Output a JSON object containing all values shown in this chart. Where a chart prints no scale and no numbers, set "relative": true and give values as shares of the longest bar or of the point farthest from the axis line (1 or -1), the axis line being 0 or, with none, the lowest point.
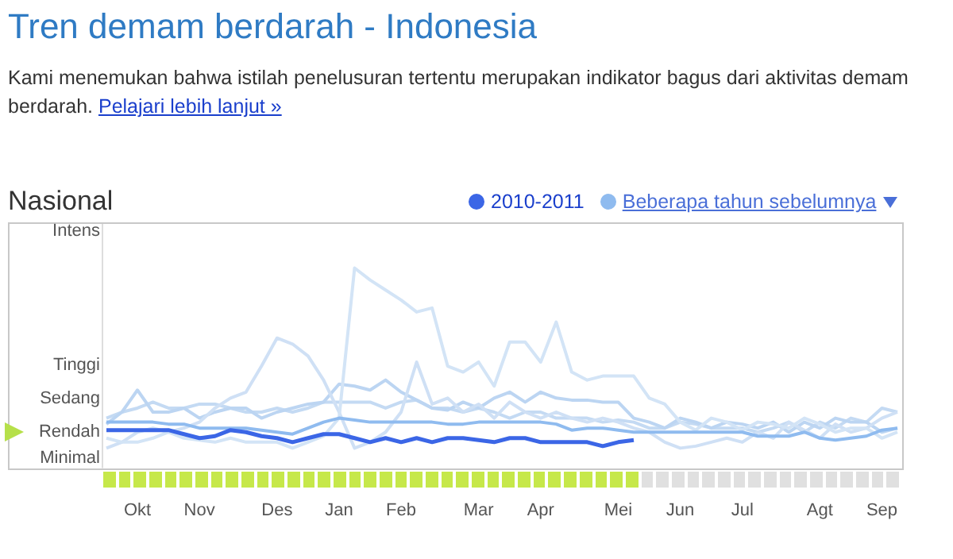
{
  "chart_data": {
    "type": "line",
    "title": "Tren demam berdarah - Indonesia",
    "subtitle": "Nasional",
    "annotations": [
      "Kami menemukan bahwa istilah penelusuran tertentu merupakan indikator bagus dari aktivitas demam berdarah.",
      "Pelajari lebih lanjut »",
      "Minimal",
      "Rendah",
      "Sedang",
      "Tinggi",
      "Intens"
    ],
    "categories": [
      null,
      null,
      "Okt",
      null,
      null,
      null,
      "Nov",
      null,
      null,
      null,
      null,
      "Des",
      null,
      null,
      null,
      "Jan",
      null,
      null,
      null,
      "Feb",
      null,
      null,
      null,
      null,
      "Mar",
      null,
      null,
      null,
      "Apr",
      null,
      null,
      null,
      null,
      "Mei",
      null,
      null,
      null,
      "Jun",
      null,
      null,
      null,
      "Jul",
      null,
      null,
      null,
      null,
      "Agt",
      null,
      null,
      null,
      "Sep",
      null
    ],
    "relative": true,
    "grid": false,
    "legend": "top right",
    "marker": "none",
    "series": [
      {
        "name": "2010-2011",
        "color": "#3b66e6",
        "values": [
          0.19,
          0.19,
          0.19,
          0.19,
          0.19,
          0.17,
          0.15,
          0.16,
          0.19,
          0.18,
          0.16,
          0.15,
          0.13,
          0.15,
          0.17,
          0.17,
          0.15,
          0.13,
          0.15,
          0.13,
          0.15,
          0.13,
          0.15,
          0.15,
          0.14,
          0.13,
          0.15,
          0.15,
          0.13,
          0.13,
          0.13,
          0.13,
          0.11,
          0.13,
          0.14,
          null,
          null,
          null,
          null,
          null,
          null,
          null,
          null,
          null,
          null,
          null,
          null,
          null,
          null,
          null,
          null,
          null
        ]
      },
      {
        "name": "Beberapa tahun sebelumnya",
        "color": "#8fbbef",
        "values": [
          0.23,
          0.23,
          0.23,
          0.23,
          0.22,
          0.22,
          0.2,
          0.2,
          0.2,
          0.2,
          0.19,
          0.18,
          0.17,
          0.2,
          0.23,
          0.25,
          0.24,
          0.23,
          0.23,
          0.23,
          0.23,
          0.23,
          0.22,
          0.22,
          0.23,
          0.23,
          0.23,
          0.23,
          0.23,
          0.22,
          0.19,
          0.2,
          0.2,
          0.19,
          0.18,
          0.18,
          0.18,
          0.18,
          0.18,
          0.18,
          0.18,
          0.18,
          0.16,
          0.16,
          0.16,
          0.18,
          0.15,
          0.14,
          0.15,
          0.16,
          0.19,
          0.2
        ]
      },
      {
        "color": "#d3e4f6",
        "values": [
          0.15,
          0.13,
          0.13,
          0.15,
          0.18,
          0.15,
          0.14,
          0.13,
          0.15,
          0.13,
          0.13,
          0.13,
          0.1,
          0.13,
          0.16,
          0.25,
          1,
          0.94,
          0.89,
          0.84,
          0.78,
          0.8,
          0.51,
          0.48,
          0.53,
          0.41,
          0.63,
          0.63,
          0.53,
          0.73,
          0.48,
          0.44,
          0.46,
          0.46,
          0.46,
          0.35,
          0.32,
          0.23,
          0.19,
          0.25,
          0.23,
          0.19,
          0.23,
          0.22,
          0.2,
          0.25,
          0.22,
          0.18,
          0.2,
          0.2,
          0.15,
          0.18
        ]
      },
      {
        "color": "#cfe0f5",
        "values": [
          0.1,
          0.13,
          0.18,
          0.2,
          0.18,
          0.2,
          0.23,
          0.3,
          0.35,
          0.38,
          0.51,
          0.65,
          0.62,
          0.56,
          0.44,
          0.28,
          0.1,
          0.13,
          0.18,
          0.28,
          0.53,
          0.32,
          0.35,
          0.28,
          0.32,
          0.25,
          0.33,
          0.28,
          0.25,
          0.28,
          0.25,
          0.23,
          0.25,
          0.23,
          0.2,
          0.18,
          0.13,
          0.1,
          0.11,
          0.13,
          0.15,
          0.13,
          0.18,
          0.15,
          0.23,
          0.19,
          0.15,
          0.22,
          0.18,
          0.2,
          0.25,
          0.28
        ]
      },
      {
        "color": "#bcd5f2",
        "values": [
          0.22,
          0.28,
          0.39,
          0.28,
          0.28,
          0.3,
          0.25,
          0.28,
          0.3,
          0.3,
          0.25,
          0.28,
          0.3,
          0.32,
          0.33,
          0.42,
          0.41,
          0.39,
          0.44,
          0.38,
          0.34,
          0.3,
          0.29,
          0.33,
          0.3,
          0.35,
          0.38,
          0.33,
          0.38,
          0.35,
          0.34,
          0.34,
          0.33,
          0.33,
          0.25,
          0.23,
          0.2,
          0.25,
          0.23,
          0.2,
          0.23,
          0.22,
          0.2,
          0.23,
          0.18,
          0.23,
          0.2,
          0.25,
          0.23,
          0.23,
          0.18,
          0.2
        ]
      },
      {
        "color": "#c4daf3",
        "values": [
          0.25,
          0.28,
          0.3,
          0.33,
          0.3,
          0.3,
          0.32,
          0.32,
          0.3,
          0.28,
          0.28,
          0.3,
          0.28,
          0.3,
          0.33,
          0.33,
          0.33,
          0.33,
          0.3,
          0.33,
          0.34,
          0.3,
          0.3,
          0.28,
          0.3,
          0.28,
          0.25,
          0.28,
          0.28,
          0.25,
          0.25,
          0.25,
          0.23,
          0.24,
          0.23,
          0.2,
          0.2,
          0.23,
          0.22,
          0.2,
          0.2,
          0.2,
          0.18,
          0.2,
          0.23,
          0.18,
          0.23,
          0.2,
          0.25,
          0.23,
          0.3,
          0.28
        ]
      }
    ]
  }
}
